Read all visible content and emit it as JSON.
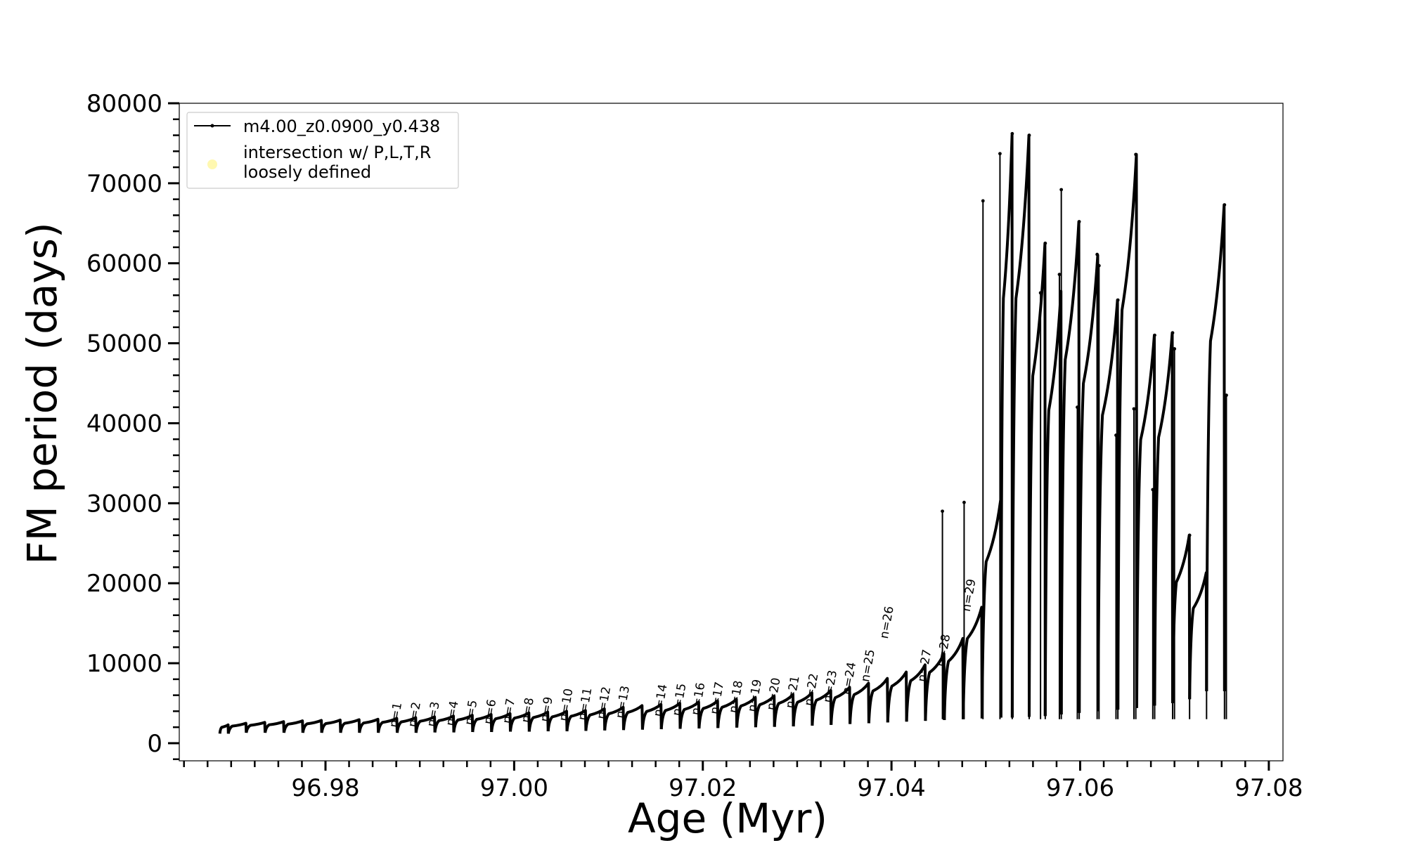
{
  "chart_data": {
    "type": "line",
    "xlabel": "Age (Myr)",
    "ylabel": "FM period (days)",
    "xlim": [
      96.9645,
      97.0815
    ],
    "ylim": [
      -2200,
      80000
    ],
    "x_ticks": [
      96.98,
      97.0,
      97.02,
      97.04,
      97.06,
      97.08
    ],
    "x_tick_labels": [
      "96.98",
      "97.00",
      "97.02",
      "97.04",
      "97.06",
      "97.08"
    ],
    "y_ticks": [
      0,
      10000,
      20000,
      30000,
      40000,
      50000,
      60000,
      70000,
      80000
    ],
    "y_tick_labels": [
      "0",
      "10000",
      "20000",
      "30000",
      "40000",
      "50000",
      "60000",
      "70000",
      "80000"
    ],
    "legend": {
      "placement": "upper-left",
      "entries": [
        {
          "label": "m4.00_z0.0900_y0.438",
          "marker": "line-with-dots",
          "color": "#000000"
        },
        {
          "label": "intersection w/ P,L,T,R\nloosely defined",
          "marker": "circle",
          "color": "#fff8b0"
        }
      ]
    },
    "series": [
      {
        "name": "m4.00_z0.0900_y0.438",
        "color": "#000000",
        "pulses": [
          {
            "start": 96.9688,
            "end": 96.9697,
            "min": 1200,
            "max": 2300
          },
          {
            "start": 96.9697,
            "end": 96.9716,
            "min": 1200,
            "max": 2500
          },
          {
            "start": 96.9716,
            "end": 96.9736,
            "min": 1300,
            "max": 2600
          },
          {
            "start": 96.9736,
            "end": 96.9756,
            "min": 1300,
            "max": 2700
          },
          {
            "start": 96.9756,
            "end": 96.9776,
            "min": 1300,
            "max": 2800
          },
          {
            "start": 96.9776,
            "end": 96.9796,
            "min": 1300,
            "max": 2850
          },
          {
            "start": 96.9796,
            "end": 96.9816,
            "min": 1300,
            "max": 2900
          },
          {
            "start": 96.9816,
            "end": 96.9836,
            "min": 1300,
            "max": 2950
          },
          {
            "start": 96.9836,
            "end": 96.9856,
            "min": 1300,
            "max": 3000
          },
          {
            "start": 96.9856,
            "end": 96.9876,
            "min": 1300,
            "max": 3100
          },
          {
            "start": 96.9876,
            "end": 96.9896,
            "min": 1300,
            "max": 3200
          },
          {
            "start": 96.9896,
            "end": 96.9916,
            "min": 1300,
            "max": 3300
          },
          {
            "start": 96.9916,
            "end": 96.9936,
            "min": 1350,
            "max": 3400
          },
          {
            "start": 96.9936,
            "end": 96.9956,
            "min": 1350,
            "max": 3500
          },
          {
            "start": 96.9956,
            "end": 96.9976,
            "min": 1400,
            "max": 3600
          },
          {
            "start": 96.9976,
            "end": 96.9996,
            "min": 1400,
            "max": 3700
          },
          {
            "start": 96.9996,
            "end": 97.0016,
            "min": 1450,
            "max": 3800
          },
          {
            "start": 97.0016,
            "end": 97.0036,
            "min": 1450,
            "max": 3900
          },
          {
            "start": 97.0036,
            "end": 97.0056,
            "min": 1500,
            "max": 4000
          },
          {
            "start": 97.0056,
            "end": 97.0076,
            "min": 1500,
            "max": 4100
          },
          {
            "start": 97.0076,
            "end": 97.0096,
            "min": 1550,
            "max": 4300
          },
          {
            "start": 97.0096,
            "end": 97.0116,
            "min": 1600,
            "max": 4500
          },
          {
            "start": 97.0116,
            "end": 97.0136,
            "min": 1650,
            "max": 4700
          },
          {
            "start": 97.0136,
            "end": 97.0156,
            "min": 1700,
            "max": 4850
          },
          {
            "start": 97.0156,
            "end": 97.0176,
            "min": 1750,
            "max": 5000
          },
          {
            "start": 97.0176,
            "end": 97.0196,
            "min": 1800,
            "max": 5150
          },
          {
            "start": 97.0196,
            "end": 97.0216,
            "min": 1850,
            "max": 5300
          },
          {
            "start": 97.0216,
            "end": 97.0236,
            "min": 1900,
            "max": 5500
          },
          {
            "start": 97.0236,
            "end": 97.0256,
            "min": 1950,
            "max": 5700
          },
          {
            "start": 97.0256,
            "end": 97.0276,
            "min": 2000,
            "max": 5900
          },
          {
            "start": 97.0276,
            "end": 97.0296,
            "min": 2050,
            "max": 6100
          },
          {
            "start": 97.0296,
            "end": 97.0316,
            "min": 2100,
            "max": 6300
          },
          {
            "start": 97.0316,
            "end": 97.0336,
            "min": 2200,
            "max": 6600
          },
          {
            "start": 97.0336,
            "end": 97.0356,
            "min": 2300,
            "max": 7000
          },
          {
            "start": 97.0356,
            "end": 97.0376,
            "min": 2400,
            "max": 7500
          },
          {
            "start": 97.0376,
            "end": 97.0396,
            "min": 2500,
            "max": 8100
          },
          {
            "start": 97.0396,
            "end": 97.0416,
            "min": 2600,
            "max": 8900
          },
          {
            "start": 97.0416,
            "end": 97.0436,
            "min": 2700,
            "max": 9800
          },
          {
            "start": 97.0436,
            "end": 97.0456,
            "min": 2800,
            "max": 11200
          },
          {
            "start": 97.0456,
            "end": 97.0476,
            "min": 2900,
            "max": 13100
          },
          {
            "start": 97.0476,
            "end": 97.0496,
            "min": 3000,
            "max": 17000
          },
          {
            "start": 97.0496,
            "end": 97.0516,
            "min": 3100,
            "max": 30300
          },
          {
            "start": 97.0516,
            "end": 97.0528,
            "min": 3200,
            "max": 76000
          },
          {
            "start": 97.0528,
            "end": 97.0546,
            "min": 3200,
            "max": 76000
          },
          {
            "start": 97.0546,
            "end": 97.0563,
            "min": 3300,
            "max": 62500
          },
          {
            "start": 97.0563,
            "end": 97.058,
            "min": 3400,
            "max": 56500
          },
          {
            "start": 97.058,
            "end": 97.0599,
            "min": 3600,
            "max": 65200
          },
          {
            "start": 97.0599,
            "end": 97.0619,
            "min": 3800,
            "max": 61000
          },
          {
            "start": 97.0619,
            "end": 97.064,
            "min": 4000,
            "max": 55400
          },
          {
            "start": 97.064,
            "end": 97.066,
            "min": 4200,
            "max": 73600
          },
          {
            "start": 97.066,
            "end": 97.0679,
            "min": 4400,
            "max": 51000
          },
          {
            "start": 97.0679,
            "end": 97.0698,
            "min": 4700,
            "max": 51300
          },
          {
            "start": 97.0698,
            "end": 97.0716,
            "min": 5000,
            "max": 26000
          },
          {
            "start": 97.0716,
            "end": 97.0734,
            "min": 5500,
            "max": 21300
          },
          {
            "start": 97.0734,
            "end": 97.0753,
            "min": 6500,
            "max": 67300
          }
        ],
        "spikes": [
          {
            "x": 97.0454,
            "top": 29000
          },
          {
            "x": 97.0477,
            "top": 30100
          },
          {
            "x": 97.0497,
            "top": 67800
          },
          {
            "x": 97.0515,
            "top": 73700
          },
          {
            "x": 97.0528,
            "top": 76200
          },
          {
            "x": 97.0546,
            "top": 76000
          },
          {
            "x": 97.0563,
            "top": 62500
          },
          {
            "x": 97.0558,
            "top": 56300
          },
          {
            "x": 97.058,
            "top": 69200
          },
          {
            "x": 97.0578,
            "top": 58600
          },
          {
            "x": 97.0599,
            "top": 65200
          },
          {
            "x": 97.0597,
            "top": 42000
          },
          {
            "x": 97.0618,
            "top": 61100
          },
          {
            "x": 97.062,
            "top": 59700
          },
          {
            "x": 97.064,
            "top": 55400
          },
          {
            "x": 97.0638,
            "top": 38500
          },
          {
            "x": 97.0659,
            "top": 73600
          },
          {
            "x": 97.0657,
            "top": 41800
          },
          {
            "x": 97.0679,
            "top": 51000
          },
          {
            "x": 97.0677,
            "top": 31700
          },
          {
            "x": 97.0698,
            "top": 51300
          },
          {
            "x": 97.07,
            "top": 49300
          },
          {
            "x": 97.0716,
            "top": 26000
          },
          {
            "x": 97.0734,
            "top": 21300
          },
          {
            "x": 97.0753,
            "top": 67300
          },
          {
            "x": 97.0755,
            "top": 43500
          }
        ]
      }
    ],
    "annotations": [
      {
        "text": "n=1",
        "x": 96.9876,
        "y": 1900
      },
      {
        "text": "n=2",
        "x": 96.9896,
        "y": 1950
      },
      {
        "text": "n=3",
        "x": 96.9916,
        "y": 2000
      },
      {
        "text": "n=4",
        "x": 96.9936,
        "y": 2100
      },
      {
        "text": "n=5",
        "x": 96.9956,
        "y": 2200
      },
      {
        "text": "n=6",
        "x": 96.9976,
        "y": 2300
      },
      {
        "text": "n=7",
        "x": 96.9996,
        "y": 2400
      },
      {
        "text": "n=8",
        "x": 97.0016,
        "y": 2500
      },
      {
        "text": "n=9",
        "x": 97.0036,
        "y": 2600
      },
      {
        "text": "n=10",
        "x": 97.0056,
        "y": 2700
      },
      {
        "text": "n=11",
        "x": 97.0076,
        "y": 2800
      },
      {
        "text": "n=12",
        "x": 97.0096,
        "y": 2950
      },
      {
        "text": "n=13",
        "x": 97.0116,
        "y": 3050
      },
      {
        "text": "n=14",
        "x": 97.0156,
        "y": 3250
      },
      {
        "text": "n=15",
        "x": 97.0176,
        "y": 3350
      },
      {
        "text": "n=16",
        "x": 97.0196,
        "y": 3450
      },
      {
        "text": "n=17",
        "x": 97.0216,
        "y": 3550
      },
      {
        "text": "n=18",
        "x": 97.0236,
        "y": 3700
      },
      {
        "text": "n=19",
        "x": 97.0256,
        "y": 3850
      },
      {
        "text": "n=20",
        "x": 97.0276,
        "y": 4050
      },
      {
        "text": "n=21",
        "x": 97.0296,
        "y": 4300
      },
      {
        "text": "n=22",
        "x": 97.0316,
        "y": 4600
      },
      {
        "text": "n=23",
        "x": 97.0336,
        "y": 5000
      },
      {
        "text": "n=24",
        "x": 97.0356,
        "y": 6000
      },
      {
        "text": "n=25",
        "x": 97.0376,
        "y": 7600
      },
      {
        "text": "n=26",
        "x": 97.0396,
        "y": 13000
      },
      {
        "text": "n=27",
        "x": 97.0436,
        "y": 7600
      },
      {
        "text": "n=28",
        "x": 97.0456,
        "y": 9500
      },
      {
        "text": "n=29",
        "x": 97.0483,
        "y": 16400
      }
    ]
  }
}
